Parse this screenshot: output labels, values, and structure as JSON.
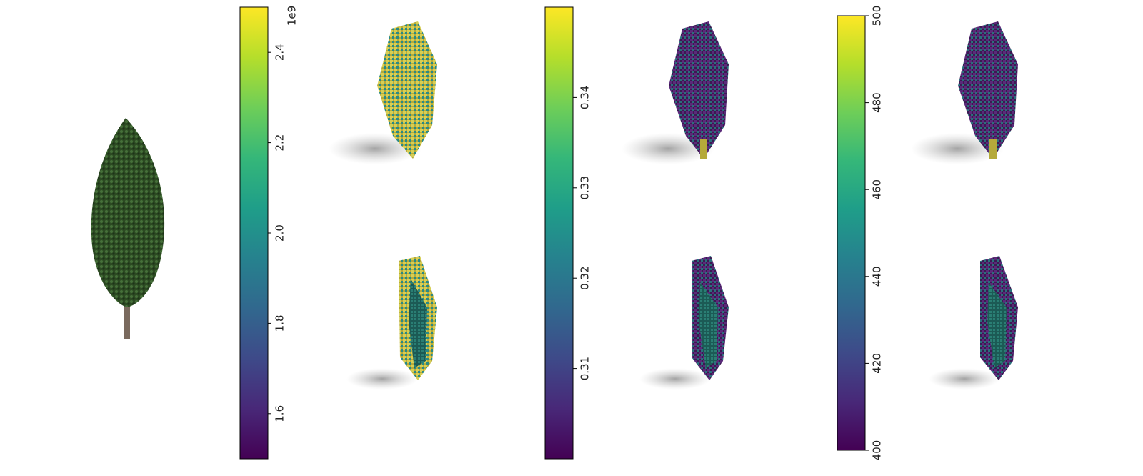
{
  "chart_data": [
    {
      "type": "colorbar",
      "colormap": "viridis",
      "ylim": [
        1.5,
        2.5
      ],
      "yticks": [
        1.6,
        1.8,
        {
          "value": 2,
          "label": "2.0"
        },
        2.2,
        2.4
      ],
      "offset_label": "1e9"
    },
    {
      "type": "colorbar",
      "colormap": "viridis",
      "ylim": [
        0.3,
        0.35
      ],
      "yticks": [
        0.31,
        0.32,
        0.33,
        0.34
      ]
    },
    {
      "type": "colorbar",
      "colormap": "viridis",
      "ylim": [
        400,
        500
      ],
      "yticks": [
        400,
        420,
        440,
        460,
        480,
        500
      ]
    }
  ]
}
